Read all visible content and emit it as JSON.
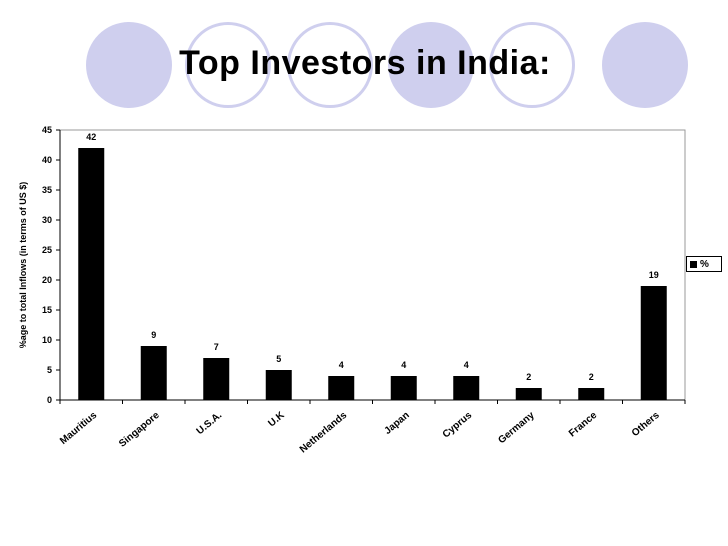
{
  "slide": {
    "title": "Top Investors in India:"
  },
  "chart_data": {
    "type": "bar",
    "title": "",
    "xlabel": "",
    "ylabel": "%age to  total  Inflows  (in terms   of US $)",
    "ylim": [
      0,
      45
    ],
    "yticks": [
      "0",
      "5",
      "10",
      "15",
      "20",
      "25",
      "30",
      "35",
      "40",
      "45"
    ],
    "categories": [
      "Mauritius",
      "Singapore",
      "U.S.A.",
      "U.K",
      "Netherlands",
      "Japan",
      "Cyprus",
      "Germany",
      "France",
      "Others"
    ],
    "series": [
      {
        "name": "%",
        "values": [
          42,
          9,
          7,
          5,
          4,
          4,
          4,
          2,
          2,
          19
        ],
        "color": "#000000"
      }
    ],
    "data_labels": [
      "42",
      "9",
      "7",
      "5",
      "4",
      "4",
      "4",
      "2",
      "2",
      "19"
    ],
    "grid": false,
    "legend": {
      "position": "right",
      "entries": [
        "%"
      ]
    }
  }
}
